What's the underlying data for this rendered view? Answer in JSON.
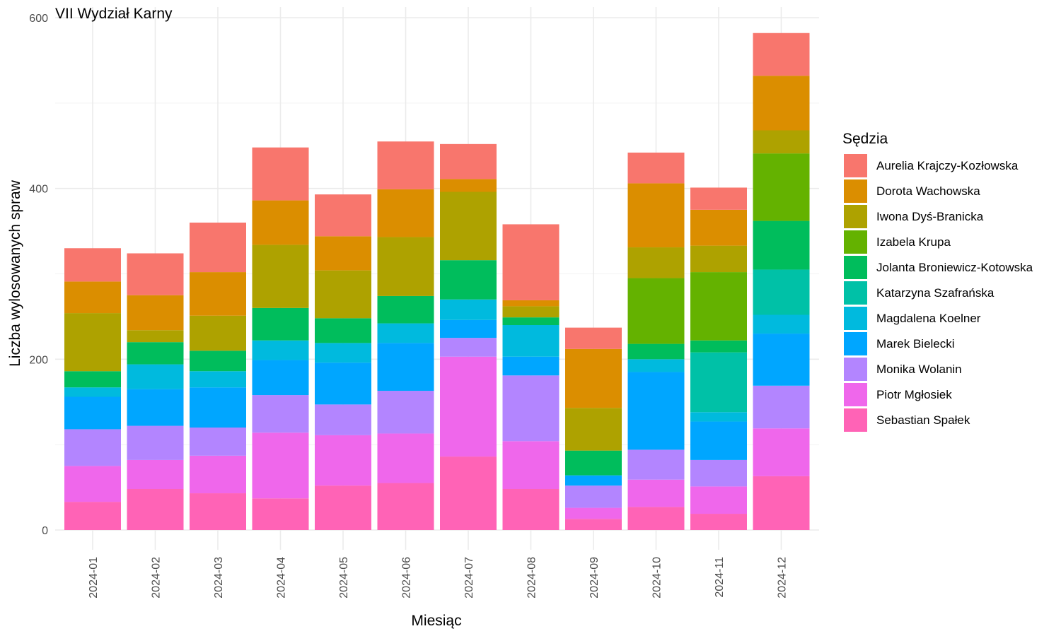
{
  "chart_data": {
    "type": "bar",
    "stacked": true,
    "title": "VII Wydział Karny",
    "xlabel": "Miesiąc",
    "ylabel": "Liczba wylosowanych spraw",
    "ylim": [
      0,
      600
    ],
    "y_ticks": [
      0,
      200,
      400,
      600
    ],
    "grid": true,
    "legend_position": "right",
    "legend_title": "Sędzia",
    "categories": [
      "2024-01",
      "2024-02",
      "2024-03",
      "2024-04",
      "2024-05",
      "2024-06",
      "2024-07",
      "2024-08",
      "2024-09",
      "2024-10",
      "2024-11",
      "2024-12"
    ],
    "series": [
      {
        "name": "Aurelia Krajczy-Kozłowska",
        "color": "#F8766D",
        "values": [
          39,
          49,
          58,
          62,
          49,
          56,
          41,
          89,
          25,
          36,
          26,
          50
        ]
      },
      {
        "name": "Dorota Wachowska",
        "color": "#DB8E00",
        "values": [
          37,
          41,
          51,
          52,
          40,
          56,
          15,
          7,
          69,
          75,
          42,
          64
        ]
      },
      {
        "name": "Iwona Dyś-Branicka",
        "color": "#AEA200",
        "values": [
          68,
          14,
          41,
          74,
          56,
          69,
          80,
          13,
          50,
          36,
          31,
          27
        ]
      },
      {
        "name": "Izabela Krupa",
        "color": "#64B200",
        "values": [
          0,
          0,
          0,
          0,
          0,
          0,
          0,
          0,
          0,
          77,
          80,
          79
        ]
      },
      {
        "name": "Jolanta Broniewicz-Kotowska",
        "color": "#00BD5C",
        "values": [
          19,
          26,
          24,
          38,
          29,
          32,
          46,
          9,
          29,
          18,
          14,
          57
        ]
      },
      {
        "name": "Katarzyna Szafrańska",
        "color": "#00C1A7",
        "values": [
          0,
          0,
          0,
          0,
          0,
          0,
          0,
          0,
          0,
          0,
          70,
          53
        ]
      },
      {
        "name": "Magdalena Koelner",
        "color": "#00BADE",
        "values": [
          11,
          29,
          19,
          23,
          23,
          23,
          24,
          37,
          0,
          15,
          11,
          22
        ]
      },
      {
        "name": "Marek Bielecki",
        "color": "#00A6FF",
        "values": [
          38,
          43,
          47,
          41,
          49,
          56,
          21,
          22,
          12,
          91,
          45,
          61
        ]
      },
      {
        "name": "Monika Wolanin",
        "color": "#B385FF",
        "values": [
          43,
          40,
          33,
          44,
          36,
          50,
          22,
          77,
          26,
          35,
          31,
          50
        ]
      },
      {
        "name": "Piotr Mgłosiek",
        "color": "#EF67EB",
        "values": [
          42,
          34,
          44,
          77,
          59,
          58,
          117,
          56,
          13,
          32,
          32,
          56
        ]
      },
      {
        "name": "Sebastian Spałek",
        "color": "#FF63B6",
        "values": [
          33,
          48,
          43,
          37,
          52,
          55,
          86,
          48,
          13,
          27,
          19,
          63
        ]
      }
    ]
  }
}
